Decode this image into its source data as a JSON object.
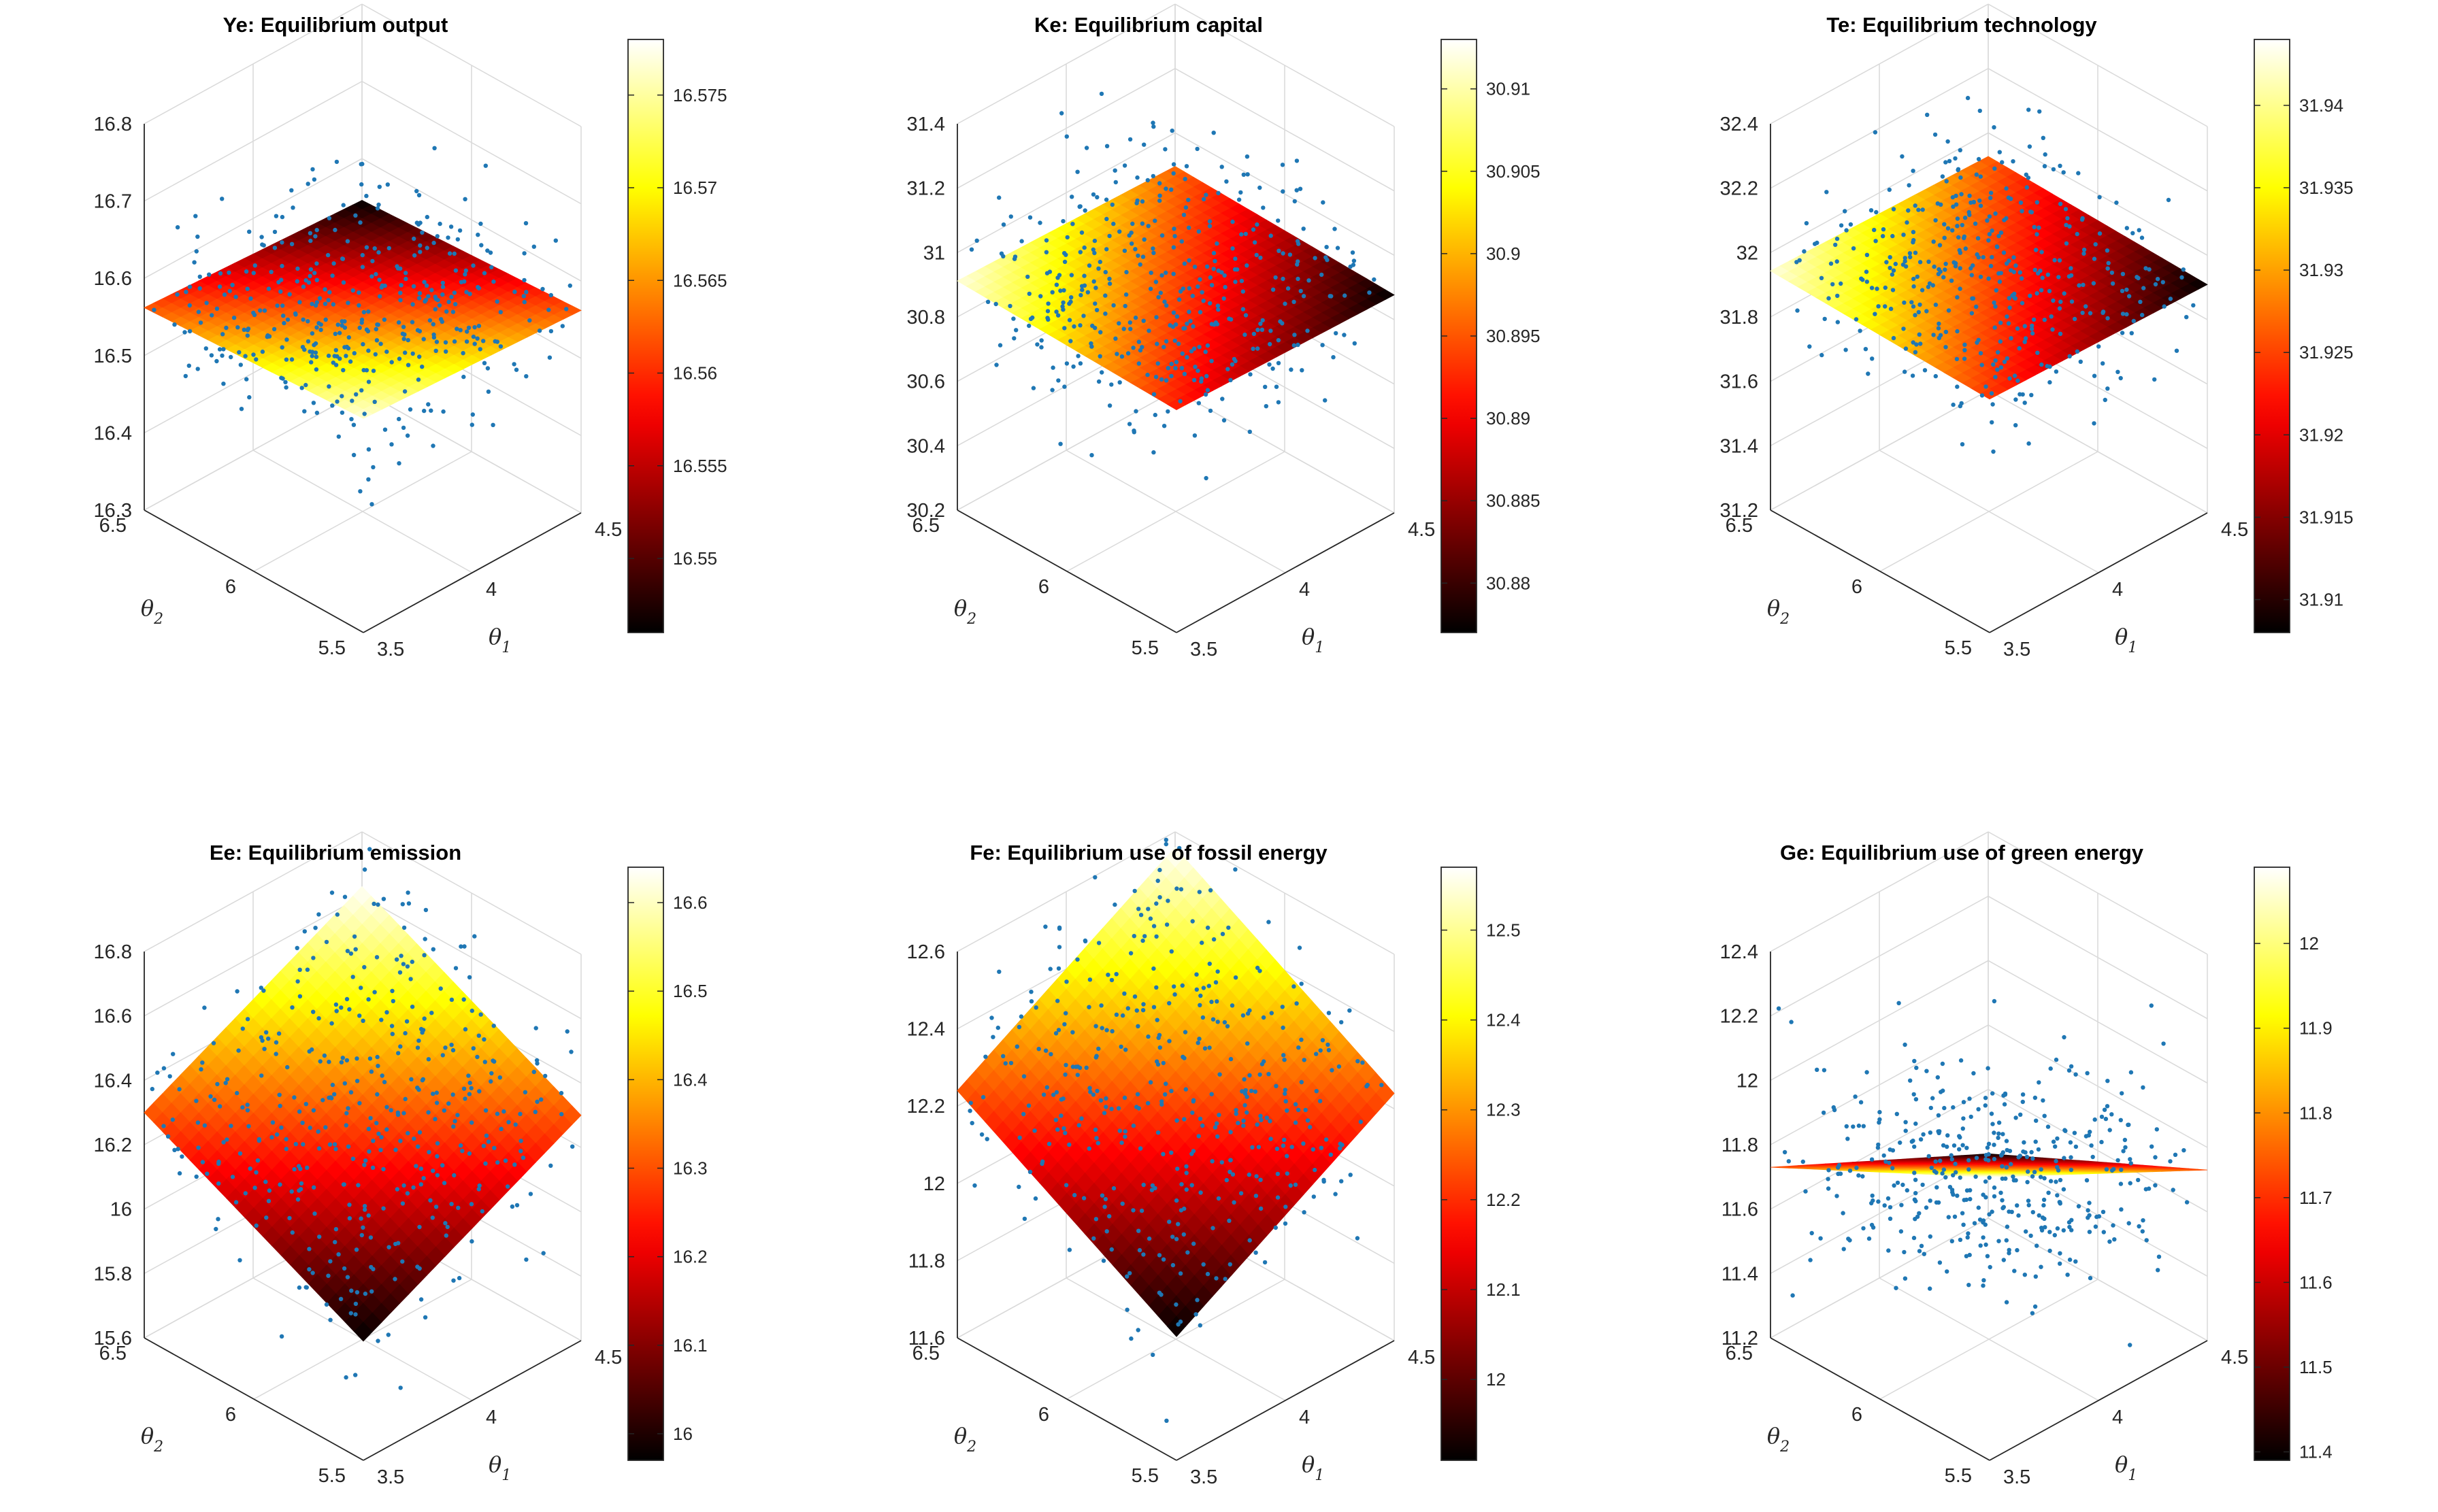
{
  "chart_data": [
    {
      "type": "surface",
      "title": "Ye: Equilibrium output",
      "xlabel": "θ1",
      "ylabel": "θ2",
      "zlabel": "",
      "xlim": [
        3.5,
        4.5
      ],
      "ylim": [
        5.5,
        6.5
      ],
      "zlim": [
        16.3,
        16.8
      ],
      "xticks": [
        "3.5",
        "4",
        "4.5"
      ],
      "yticks": [
        "5.5",
        "6",
        "6.5"
      ],
      "zticks": [
        "16.3",
        "16.4",
        "16.5",
        "16.6",
        "16.7",
        "16.8"
      ],
      "surface_corners": {
        "x3.5_y5.5": 16.577,
        "x4.5_y5.5": 16.562,
        "x3.5_y6.5": 16.562,
        "x4.5_y6.5": 16.546
      },
      "surface_range": [
        16.546,
        16.578
      ],
      "scatter_noise": 0.055,
      "scatter_count": 420,
      "colorbar": {
        "ticks": [
          "16.55",
          "16.555",
          "16.56",
          "16.565",
          "16.57",
          "16.575"
        ],
        "range": [
          16.546,
          16.578
        ]
      },
      "colormap": "hot"
    },
    {
      "type": "surface",
      "title": "Ke: Equilibrium capital",
      "xlabel": "θ1",
      "ylabel": "θ2",
      "zlabel": "",
      "xlim": [
        3.5,
        4.5
      ],
      "ylim": [
        5.5,
        6.5
      ],
      "zlim": [
        30.2,
        31.4
      ],
      "xticks": [
        "3.5",
        "4",
        "4.5"
      ],
      "yticks": [
        "5.5",
        "6",
        "6.5"
      ],
      "zticks": [
        "30.2",
        "30.4",
        "30.6",
        "30.8",
        "31",
        "31.2",
        "31.4"
      ],
      "surface_corners": {
        "x3.5_y5.5": 30.892,
        "x4.5_y5.5": 30.877,
        "x3.5_y6.5": 30.912,
        "x4.5_y6.5": 30.896
      },
      "surface_range": [
        30.877,
        30.913
      ],
      "scatter_noise": 0.14,
      "scatter_count": 420,
      "colorbar": {
        "ticks": [
          "30.88",
          "30.885",
          "30.89",
          "30.895",
          "30.9",
          "30.905",
          "30.91"
        ],
        "range": [
          30.877,
          30.913
        ]
      },
      "colormap": "hot"
    },
    {
      "type": "surface",
      "title": "Te: Equilibrium technology",
      "xlabel": "θ1",
      "ylabel": "θ2",
      "zlabel": "",
      "xlim": [
        3.5,
        4.5
      ],
      "ylim": [
        5.5,
        6.5
      ],
      "zlim": [
        31.2,
        32.4
      ],
      "xticks": [
        "3.5",
        "4",
        "4.5"
      ],
      "yticks": [
        "5.5",
        "6",
        "6.5"
      ],
      "zticks": [
        "31.2",
        "31.4",
        "31.6",
        "31.8",
        "32",
        "32.2",
        "32.4"
      ],
      "surface_corners": {
        "x3.5_y5.5": 31.925,
        "x4.5_y5.5": 31.909,
        "x3.5_y6.5": 31.943,
        "x4.5_y6.5": 31.927
      },
      "surface_range": [
        31.909,
        31.944
      ],
      "scatter_noise": 0.14,
      "scatter_count": 420,
      "colorbar": {
        "ticks": [
          "31.91",
          "31.915",
          "31.92",
          "31.925",
          "31.93",
          "31.935",
          "31.94"
        ],
        "range": [
          31.908,
          31.944
        ]
      },
      "colormap": "hot"
    },
    {
      "type": "surface",
      "title": "Ee: Equilibrium emission",
      "xlabel": "θ1",
      "ylabel": "θ2",
      "zlabel": "",
      "xlim": [
        3.5,
        4.5
      ],
      "ylim": [
        5.5,
        6.5
      ],
      "zlim": [
        15.6,
        16.8
      ],
      "xticks": [
        "3.5",
        "4",
        "4.5"
      ],
      "yticks": [
        "5.5",
        "6",
        "6.5"
      ],
      "zticks": [
        "15.6",
        "15.8",
        "16",
        "16.2",
        "16.4",
        "16.6",
        "16.8"
      ],
      "surface_corners": {
        "x3.5_y5.5": 15.97,
        "x4.5_y5.5": 16.3,
        "x3.5_y6.5": 16.3,
        "x4.5_y6.5": 16.63
      },
      "surface_range": [
        15.97,
        16.63
      ],
      "scatter_noise": 0.14,
      "scatter_count": 420,
      "colorbar": {
        "ticks": [
          "16",
          "16.1",
          "16.2",
          "16.3",
          "16.4",
          "16.5",
          "16.6"
        ],
        "range": [
          15.97,
          16.64
        ]
      },
      "colormap": "hot"
    },
    {
      "type": "surface",
      "title": "Fe: Equilibrium use of fossil energy",
      "xlabel": "θ1",
      "ylabel": "θ2",
      "zlabel": "",
      "xlim": [
        3.5,
        4.5
      ],
      "ylim": [
        5.5,
        6.5
      ],
      "zlim": [
        11.6,
        12.6
      ],
      "xticks": [
        "3.5",
        "4",
        "4.5"
      ],
      "yticks": [
        "5.5",
        "6",
        "6.5"
      ],
      "zticks": [
        "11.6",
        "11.8",
        "12",
        "12.2",
        "12.4",
        "12.6"
      ],
      "surface_corners": {
        "x3.5_y5.5": 11.92,
        "x4.5_y5.5": 12.24,
        "x3.5_y6.5": 12.24,
        "x4.5_y6.5": 12.56
      },
      "surface_range": [
        11.92,
        12.56
      ],
      "scatter_noise": 0.12,
      "scatter_count": 420,
      "colorbar": {
        "ticks": [
          "12",
          "12.1",
          "12.2",
          "12.3",
          "12.4",
          "12.5"
        ],
        "range": [
          11.91,
          12.57
        ]
      },
      "colormap": "hot"
    },
    {
      "type": "surface",
      "title": "Ge: Equilibrium use of green energy",
      "xlabel": "θ1",
      "ylabel": "θ2",
      "zlabel": "",
      "xlim": [
        3.5,
        4.5
      ],
      "ylim": [
        5.5,
        6.5
      ],
      "zlim": [
        11.2,
        12.4
      ],
      "xticks": [
        "3.5",
        "4",
        "4.5"
      ],
      "yticks": [
        "5.5",
        "6",
        "6.5"
      ],
      "zticks": [
        "11.2",
        "11.4",
        "11.6",
        "11.8",
        "12",
        "12.2",
        "12.4"
      ],
      "surface_corners": {
        "x3.5_y5.5": 12.08,
        "x4.5_y5.5": 11.73,
        "x3.5_y6.5": 11.73,
        "x4.5_y6.5": 11.4
      },
      "surface_range": [
        11.4,
        12.08
      ],
      "scatter_noise": 0.18,
      "scatter_count": 420,
      "colorbar": {
        "ticks": [
          "11.4",
          "11.5",
          "11.6",
          "11.7",
          "11.8",
          "11.9",
          "12"
        ],
        "range": [
          11.39,
          12.09
        ]
      },
      "colormap": "hot"
    }
  ],
  "colors": {
    "scatter": "#1f77b4",
    "axis": "#262626",
    "grid": "#d9d9d9"
  }
}
